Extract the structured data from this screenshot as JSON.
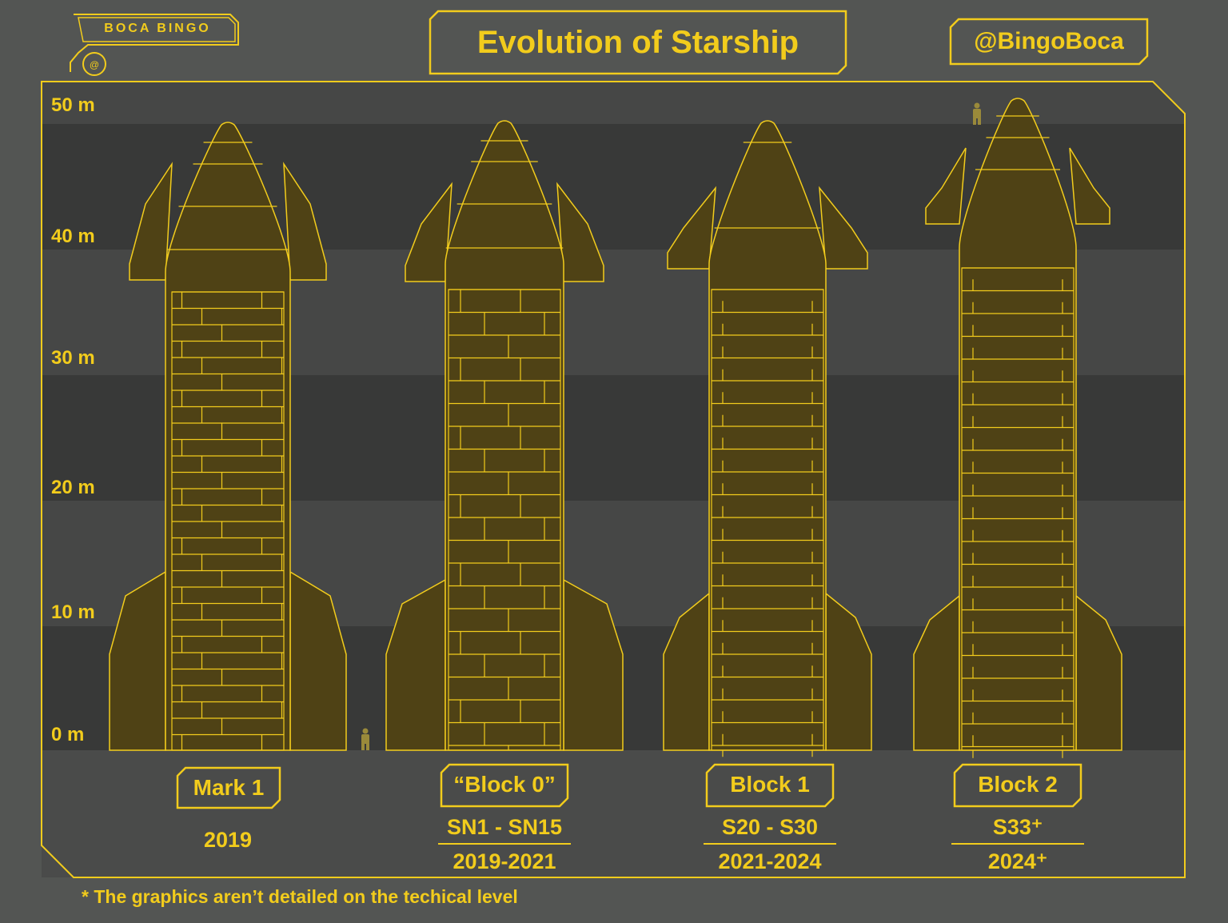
{
  "logo": {
    "text": "BOCA BINGO",
    "mark": "@"
  },
  "title": "Evolution of Starship",
  "handle": "@BingoBoca",
  "y_axis": {
    "labels": [
      "50 m",
      "40 m",
      "30 m",
      "20 m",
      "10 m",
      "0 m"
    ]
  },
  "versions": [
    {
      "name": "Mark 1",
      "serial": "",
      "years": "2019"
    },
    {
      "name": "“Block 0”",
      "serial": "SN1 - SN15",
      "years": "2019-2021"
    },
    {
      "name": "Block 1",
      "serial": "S20 - S30",
      "years": "2021-2024"
    },
    {
      "name": "Block 2",
      "serial": "S33⁺",
      "years": "2024⁺"
    }
  ],
  "footnote": "* The graphics aren’t detailed on the techical level",
  "colors": {
    "background": "#535553",
    "accent": "#f2cc1c",
    "rocket_fill": "#4f4215",
    "band_dark": "#383938",
    "band_light": "#464746"
  }
}
